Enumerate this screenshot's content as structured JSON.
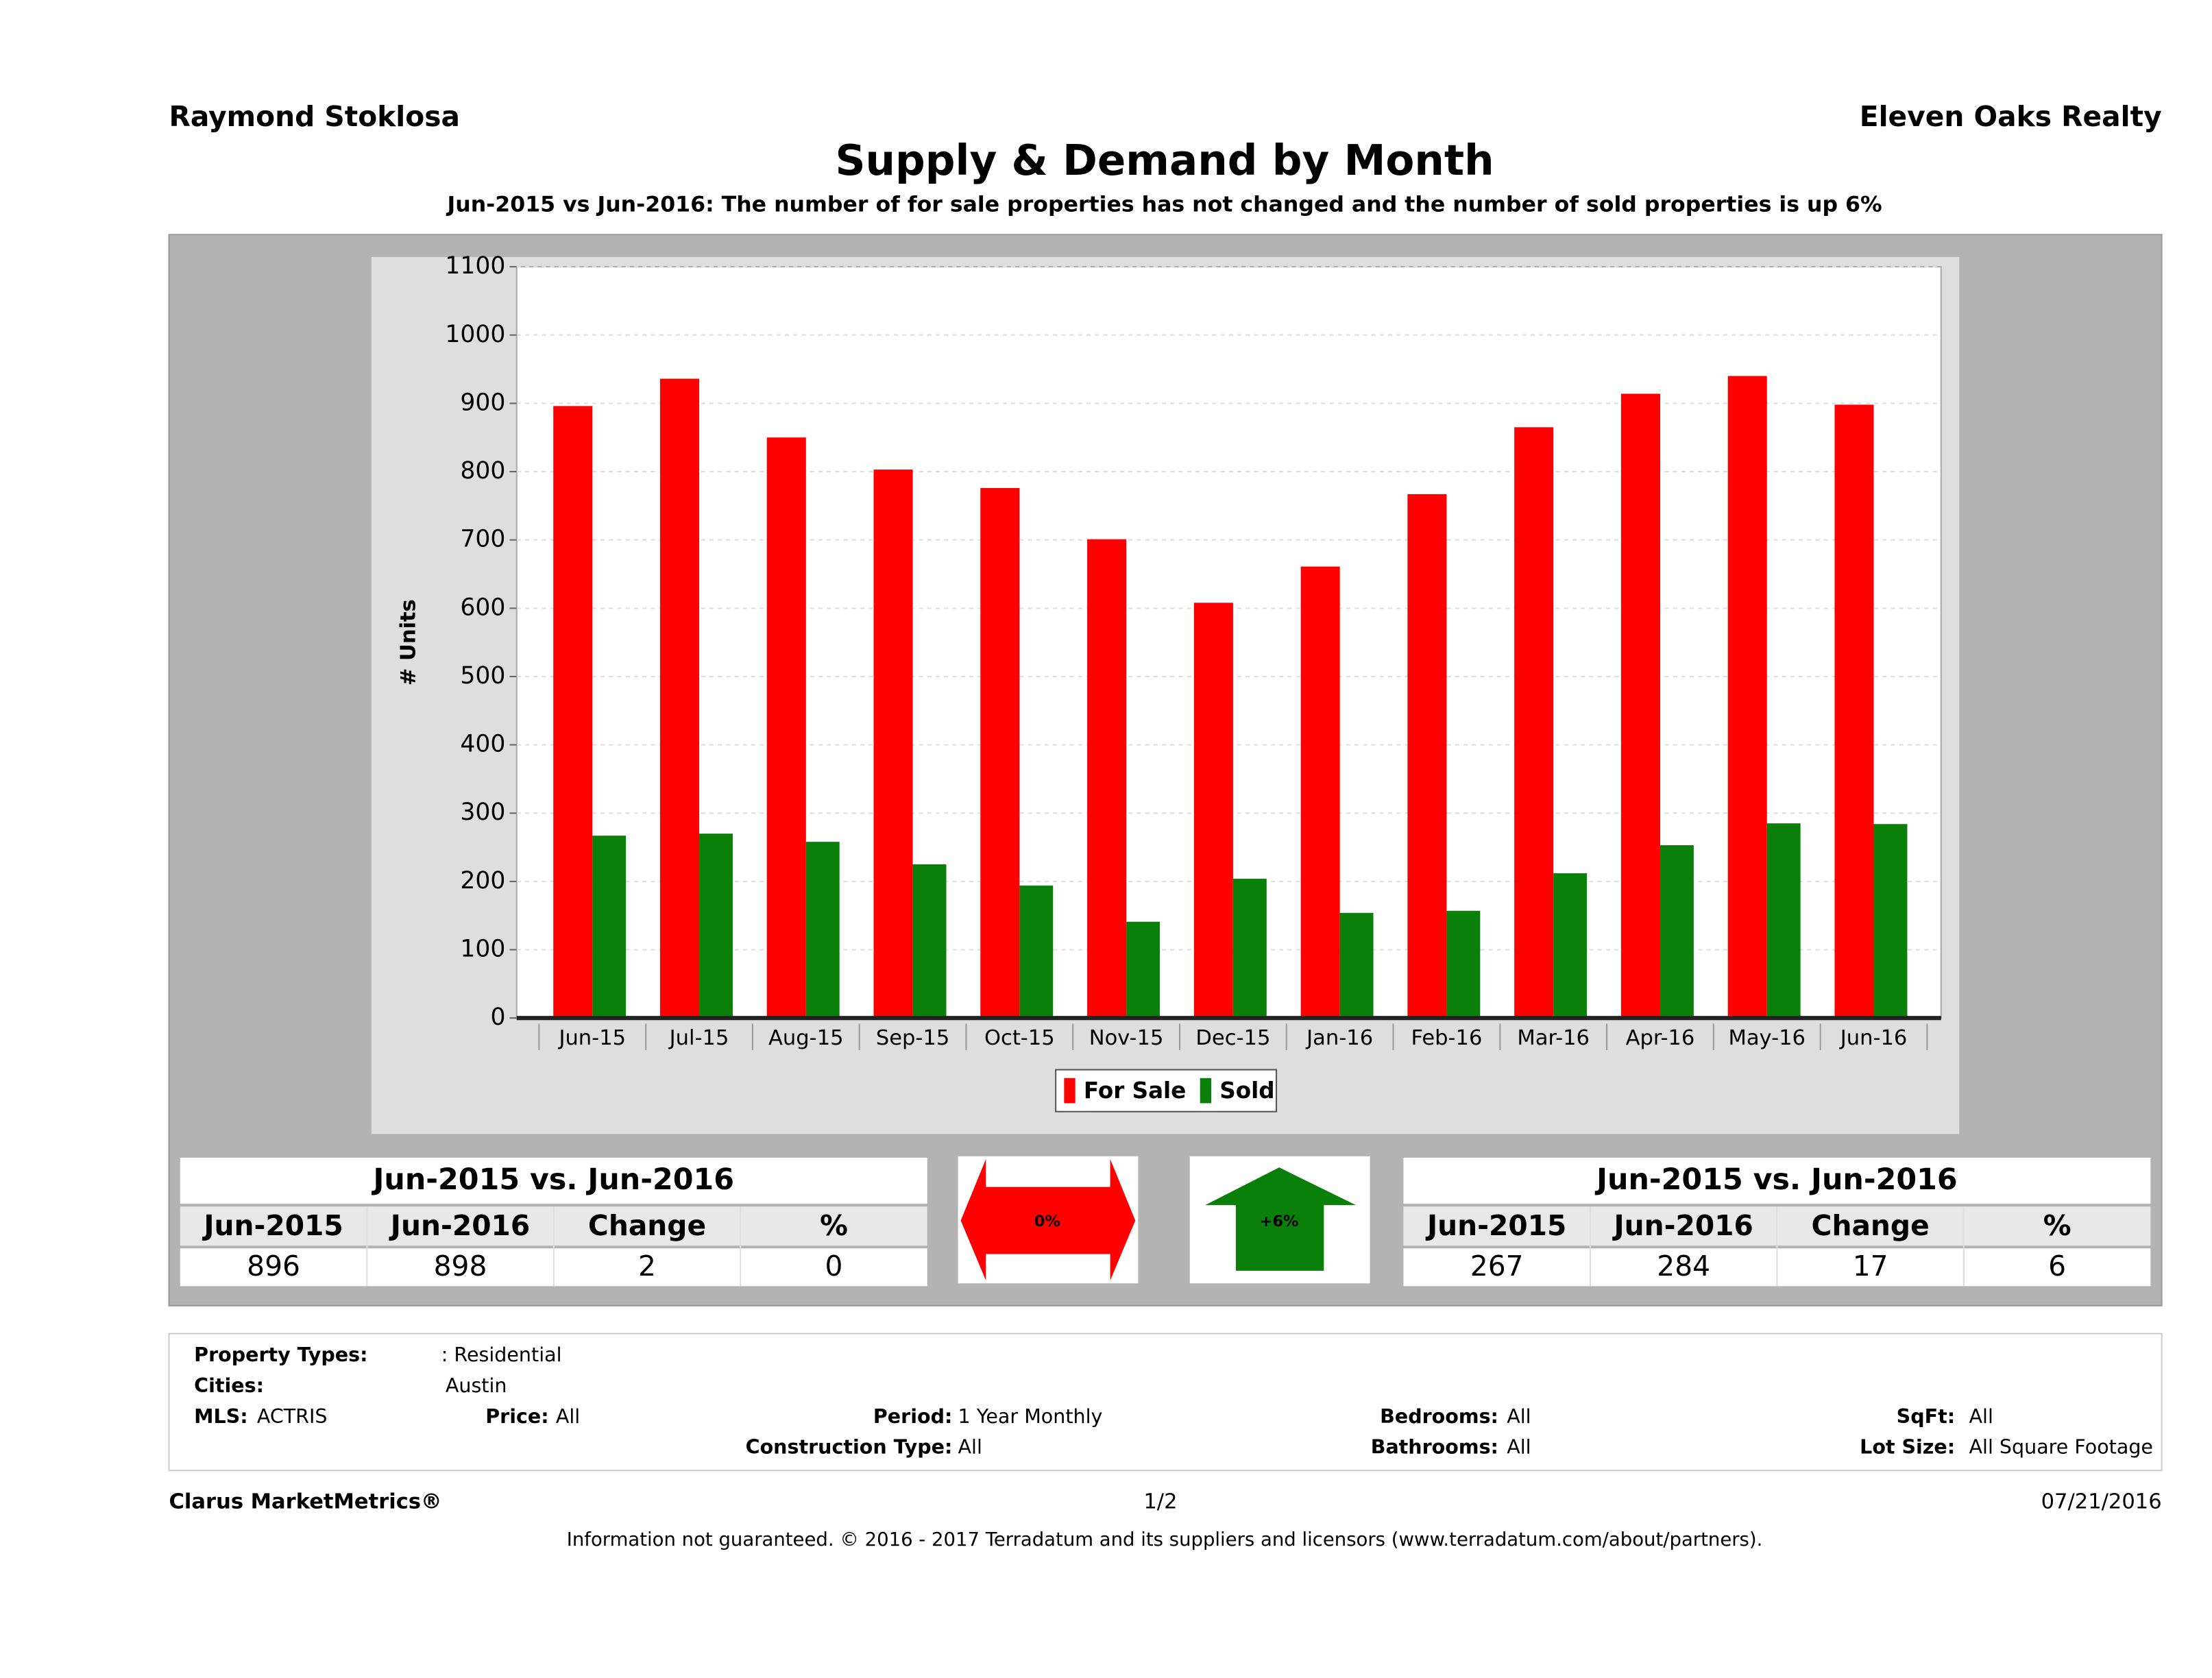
{
  "header": {
    "agent": "Raymond Stoklosa",
    "brokerage": "Eleven Oaks Realty"
  },
  "chart_data": {
    "type": "bar",
    "title": "Supply & Demand by Month",
    "subtitle": "Jun-2015 vs Jun-2016: The number of for sale properties has not changed and the number of sold properties is up 6%",
    "y_label": "# Units",
    "categories": [
      "Jun-15",
      "Jul-15",
      "Aug-15",
      "Sep-15",
      "Oct-15",
      "Nov-15",
      "Dec-15",
      "Jan-16",
      "Feb-16",
      "Mar-16",
      "Apr-16",
      "May-16",
      "Jun-16"
    ],
    "series": [
      {
        "name": "For Sale",
        "color": "#ff0000",
        "values": [
          896,
          936,
          850,
          803,
          776,
          701,
          608,
          661,
          767,
          865,
          914,
          940,
          898
        ]
      },
      {
        "name": "Sold",
        "color": "#0a7f0a",
        "values": [
          267,
          270,
          258,
          225,
          194,
          141,
          204,
          154,
          157,
          212,
          253,
          285,
          284
        ]
      }
    ],
    "ylim": [
      0,
      1100
    ],
    "yticks": [
      0,
      100,
      200,
      300,
      400,
      500,
      600,
      700,
      800,
      900,
      1000,
      1100
    ],
    "grid": true,
    "legend": "bottom"
  },
  "summary": [
    {
      "title": "Jun-2015 vs. Jun-2016",
      "columns": [
        "Jun-2015",
        "Jun-2016",
        "Change",
        "%"
      ],
      "values": [
        896,
        898,
        2,
        0
      ],
      "badge": "0%"
    },
    {
      "title": "Jun-2015 vs. Jun-2016",
      "columns": [
        "Jun-2015",
        "Jun-2016",
        "Change",
        "%"
      ],
      "values": [
        267,
        284,
        17,
        6
      ],
      "badge": "+6%"
    }
  ],
  "filters": [
    {
      "label": "Property Types:",
      "value": ": Residential"
    },
    {
      "label": "Cities:",
      "value": "Austin"
    },
    {
      "label": "MLS:",
      "value": "ACTRIS"
    },
    {
      "label": "Price:",
      "value": "All"
    },
    {
      "label": "Period:",
      "value": "1 Year Monthly"
    },
    {
      "label": "Bedrooms:",
      "value": "All"
    },
    {
      "label": "SqFt:",
      "value": "All"
    },
    {
      "label": "Construction Type:",
      "value": "All"
    },
    {
      "label": "Bathrooms:",
      "value": "All"
    },
    {
      "label": "Lot Size:",
      "value": "All Square Footage"
    }
  ],
  "footer": {
    "brand": "Clarus MarketMetrics®",
    "page": "1/2",
    "date": "07/21/2016",
    "disclaimer": "Information not guaranteed. © 2016 - 2017 Terradatum and its suppliers and licensors (www.terradatum.com/about/partners)."
  }
}
